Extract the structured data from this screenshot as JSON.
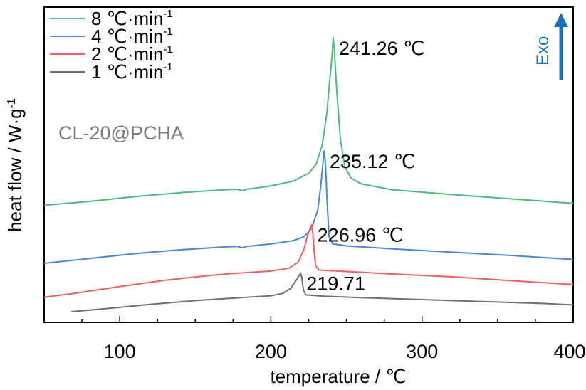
{
  "chart_data": {
    "type": "line",
    "xlabel": "temperature / ℃",
    "ylabel": "heat flow / W·g",
    "ylabel_sup": "-1",
    "xlim": [
      50,
      400
    ],
    "xticks": [
      "100",
      "200",
      "300",
      "400"
    ],
    "sample_label": "CL-20@PCHA",
    "exo_label": "Exo",
    "legend": [
      {
        "rate": "8",
        "unit": " ℃·min",
        "sup": "-1",
        "color": "#4cbb7a"
      },
      {
        "rate": "4",
        "unit": " ℃·min",
        "sup": "-1",
        "color": "#4a86d8"
      },
      {
        "rate": "2",
        "unit": " ℃·min",
        "sup": "-1",
        "color": "#ee6060"
      },
      {
        "rate": "1",
        "unit": " ℃·min",
        "sup": "-1",
        "color": "#707070"
      }
    ],
    "series": [
      {
        "name": "8 ℃·min-1",
        "color": "#4cbb7a",
        "peak_label": "241.26 ℃",
        "points": [
          [
            50,
            2.2
          ],
          [
            80,
            2.28
          ],
          [
            110,
            2.38
          ],
          [
            140,
            2.46
          ],
          [
            170,
            2.52
          ],
          [
            178,
            2.53
          ],
          [
            181,
            2.5
          ],
          [
            184,
            2.53
          ],
          [
            200,
            2.6
          ],
          [
            215,
            2.7
          ],
          [
            225,
            2.86
          ],
          [
            230,
            3.05
          ],
          [
            234,
            3.45
          ],
          [
            237,
            4.1
          ],
          [
            239,
            4.8
          ],
          [
            240.5,
            5.3
          ],
          [
            241.26,
            5.66
          ],
          [
            242,
            5.4
          ],
          [
            243.5,
            4.6
          ],
          [
            246,
            3.55
          ],
          [
            249,
            3.0
          ],
          [
            253,
            2.76
          ],
          [
            260,
            2.64
          ],
          [
            280,
            2.52
          ],
          [
            320,
            2.42
          ],
          [
            360,
            2.33
          ],
          [
            400,
            2.24
          ]
        ]
      },
      {
        "name": "4 ℃·min-1",
        "color": "#4a86d8",
        "peak_label": "235.12 ℃",
        "points": [
          [
            50,
            1.0
          ],
          [
            80,
            1.1
          ],
          [
            110,
            1.2
          ],
          [
            140,
            1.28
          ],
          [
            170,
            1.34
          ],
          [
            178,
            1.35
          ],
          [
            181,
            1.32
          ],
          [
            184,
            1.35
          ],
          [
            200,
            1.4
          ],
          [
            215,
            1.47
          ],
          [
            222,
            1.55
          ],
          [
            227,
            1.72
          ],
          [
            231,
            2.1
          ],
          [
            233,
            2.6
          ],
          [
            234.5,
            3.1
          ],
          [
            235.12,
            3.32
          ],
          [
            236,
            3.1
          ],
          [
            237.5,
            2.1
          ],
          [
            238.5,
            1.55
          ],
          [
            241,
            1.4
          ],
          [
            250,
            1.36
          ],
          [
            280,
            1.3
          ],
          [
            320,
            1.23
          ],
          [
            360,
            1.16
          ],
          [
            400,
            1.08
          ]
        ]
      },
      {
        "name": "2 ℃·min-1",
        "color": "#ee6060",
        "peak_label": "226.96 ℃",
        "points": [
          [
            50,
            0.3
          ],
          [
            70,
            0.38
          ],
          [
            100,
            0.52
          ],
          [
            130,
            0.65
          ],
          [
            160,
            0.75
          ],
          [
            175,
            0.79
          ],
          [
            200,
            0.84
          ],
          [
            212,
            0.9
          ],
          [
            218,
            1.02
          ],
          [
            222,
            1.3
          ],
          [
            224.5,
            1.6
          ],
          [
            226.96,
            1.8
          ],
          [
            227.5,
            1.7
          ],
          [
            228.5,
            1.3
          ],
          [
            229.5,
            0.95
          ],
          [
            232,
            0.86
          ],
          [
            245,
            0.84
          ],
          [
            280,
            0.78
          ],
          [
            320,
            0.72
          ],
          [
            360,
            0.64
          ],
          [
            400,
            0.56
          ]
        ]
      },
      {
        "name": "1 ℃·min-1",
        "color": "#707070",
        "peak_label": "219.71",
        "points": [
          [
            68,
            0.0
          ],
          [
            90,
            0.06
          ],
          [
            120,
            0.15
          ],
          [
            150,
            0.23
          ],
          [
            180,
            0.29
          ],
          [
            200,
            0.33
          ],
          [
            208,
            0.38
          ],
          [
            213,
            0.48
          ],
          [
            217,
            0.66
          ],
          [
            219.71,
            0.8
          ],
          [
            220.5,
            0.7
          ],
          [
            221.5,
            0.45
          ],
          [
            223,
            0.35
          ],
          [
            235,
            0.32
          ],
          [
            260,
            0.29
          ],
          [
            300,
            0.25
          ],
          [
            340,
            0.21
          ],
          [
            380,
            0.17
          ],
          [
            400,
            0.14
          ]
        ]
      }
    ]
  }
}
